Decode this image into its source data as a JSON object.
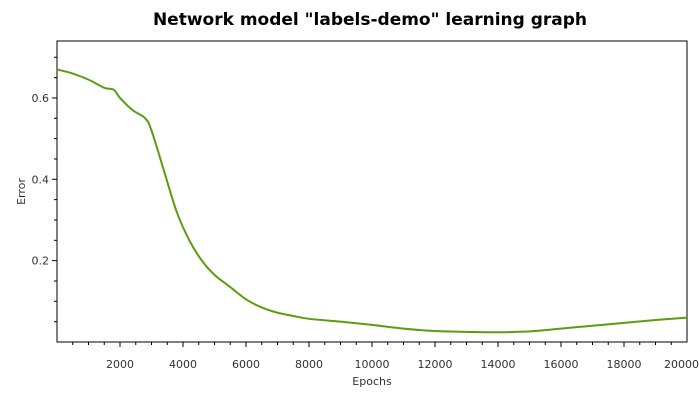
{
  "chart_data": {
    "type": "line",
    "title": "Network model \"labels-demo\" learning graph",
    "xlabel": "Epochs",
    "ylabel": "Error",
    "xlim": [
      0,
      20000
    ],
    "ylim": [
      0,
      0.74
    ],
    "x_ticks": [
      2000,
      4000,
      6000,
      8000,
      10000,
      12000,
      14000,
      16000,
      18000,
      20000
    ],
    "y_ticks": [
      0.2,
      0.4,
      0.6
    ],
    "grid": false,
    "line_color": "#5a9e0f",
    "series": [
      {
        "x": [
          0,
          500,
          1000,
          1500,
          1800,
          2000,
          2400,
          2800,
          3000,
          3400,
          3800,
          4200,
          4600,
          5000,
          5500,
          6000,
          6500,
          7000,
          7500,
          8000,
          9000,
          10000,
          11000,
          12000,
          13000,
          14000,
          15000,
          16000,
          17000,
          18000,
          19000,
          20000
        ],
        "y": [
          0.67,
          0.66,
          0.645,
          0.625,
          0.62,
          0.6,
          0.57,
          0.55,
          0.52,
          0.42,
          0.32,
          0.25,
          0.2,
          0.165,
          0.135,
          0.105,
          0.085,
          0.072,
          0.064,
          0.057,
          0.05,
          0.042,
          0.033,
          0.027,
          0.025,
          0.024,
          0.026,
          0.033,
          0.04,
          0.047,
          0.054,
          0.06
        ]
      }
    ]
  }
}
